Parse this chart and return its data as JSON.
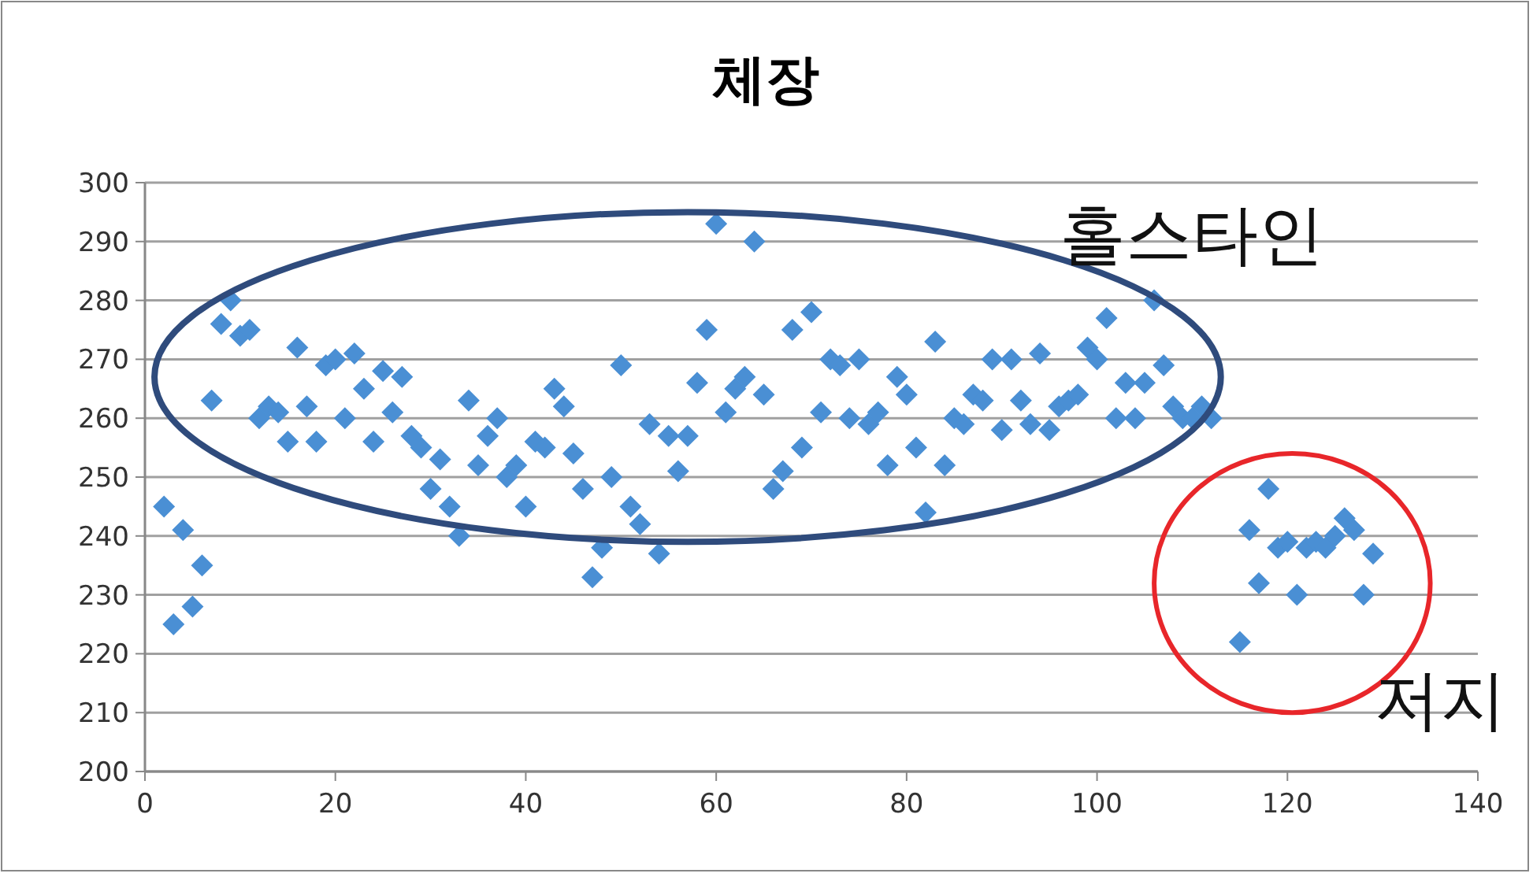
{
  "chart_data": {
    "type": "scatter",
    "title": "체장",
    "marker": "diamond",
    "grid": "y",
    "xlim": [
      0,
      140
    ],
    "xticks": [
      0,
      20,
      40,
      60,
      80,
      100,
      120,
      140
    ],
    "ylim": [
      200,
      300
    ],
    "yticks": [
      200,
      210,
      220,
      230,
      240,
      250,
      260,
      270,
      280,
      290,
      300
    ],
    "annotations": [
      "홀스타인",
      "저지"
    ],
    "series": [
      {
        "color": "#4a8fd4",
        "x": [
          2,
          3,
          4,
          5,
          6,
          7,
          8,
          9,
          10,
          11,
          12,
          13,
          14,
          15,
          16,
          17,
          18,
          19,
          20,
          21,
          22,
          23,
          24,
          25,
          26,
          27,
          28,
          29,
          30,
          31,
          32,
          33,
          34,
          35,
          36,
          37,
          38,
          39,
          40,
          41,
          42,
          43,
          44,
          45,
          46,
          47,
          48,
          49,
          50,
          51,
          52,
          53,
          54,
          55,
          56,
          57,
          58,
          59,
          60,
          61,
          62,
          63,
          64,
          65,
          66,
          67,
          68,
          69,
          70,
          71,
          72,
          73,
          74,
          75,
          76,
          77,
          78,
          79,
          80,
          81,
          82,
          83,
          84,
          85,
          86,
          87,
          88,
          89,
          90,
          91,
          92,
          93,
          94,
          95,
          96,
          97,
          98,
          99,
          100,
          101,
          102,
          103,
          104,
          105,
          106,
          107,
          108,
          109,
          110,
          111,
          112,
          115,
          116,
          117,
          118,
          119,
          120,
          121,
          122,
          123,
          124,
          125,
          126,
          127,
          128,
          129
        ],
        "values": [
          245,
          225,
          241,
          228,
          235,
          263,
          276,
          280,
          274,
          275,
          260,
          262,
          261,
          256,
          272,
          262,
          256,
          269,
          270,
          260,
          271,
          265,
          256,
          268,
          261,
          267,
          257,
          255,
          248,
          253,
          245,
          240,
          263,
          252,
          257,
          260,
          250,
          252,
          245,
          256,
          255,
          265,
          262,
          254,
          248,
          233,
          238,
          250,
          269,
          245,
          242,
          259,
          237,
          257,
          251,
          257,
          266,
          275,
          293,
          261,
          265,
          267,
          290,
          264,
          248,
          251,
          275,
          255,
          278,
          261,
          270,
          269,
          260,
          270,
          259,
          261,
          252,
          267,
          264,
          255,
          244,
          273,
          252,
          260,
          259,
          264,
          263,
          270,
          258,
          270,
          263,
          259,
          271,
          258,
          262,
          263,
          264,
          272,
          270,
          277,
          260,
          266,
          260,
          266,
          280,
          269,
          262,
          260,
          260,
          262,
          260,
          222,
          241,
          232,
          248,
          238,
          239,
          230,
          238,
          239,
          238,
          240,
          243,
          241,
          230,
          237
        ]
      }
    ]
  }
}
